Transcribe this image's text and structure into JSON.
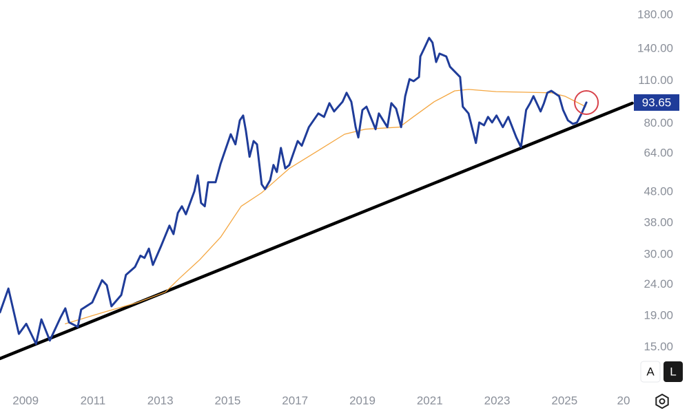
{
  "chart_data": {
    "type": "line",
    "log_scale": true,
    "xlim": [
      2008.24,
      2027.06
    ],
    "ylim": [
      11.0,
      201.6
    ],
    "xticks": [
      2009,
      2011,
      2013,
      2015,
      2017,
      2019,
      2021,
      2023,
      2025,
      {
        "value": 2027,
        "label": "20"
      }
    ],
    "yticks": [
      {
        "value": 15,
        "label": "15.00"
      },
      {
        "value": 19,
        "label": "19.00"
      },
      {
        "value": 24,
        "label": "24.00"
      },
      {
        "value": 30,
        "label": "30.00"
      },
      {
        "value": 38,
        "label": "38.00"
      },
      {
        "value": 48,
        "label": "48.00"
      },
      {
        "value": 64,
        "label": "64.00"
      },
      {
        "value": 80,
        "label": "80.00"
      },
      {
        "value": 110,
        "label": "110.00"
      },
      {
        "value": 140,
        "label": "140.00"
      },
      {
        "value": 180,
        "label": "180.00"
      }
    ],
    "last_price": 93.65,
    "series": [
      {
        "color": "#1f3c99",
        "width": 3,
        "x": [
          2008.24,
          2008.49,
          2008.8,
          2009.02,
          2009.31,
          2009.47,
          2009.72,
          2010.04,
          2010.18,
          2010.29,
          2010.55,
          2010.65,
          2010.98,
          2011.27,
          2011.41,
          2011.55,
          2011.84,
          2011.98,
          2012.25,
          2012.41,
          2012.53,
          2012.66,
          2012.78,
          2013.02,
          2013.27,
          2013.39,
          2013.52,
          2013.64,
          2013.76,
          2014.01,
          2014.11,
          2014.21,
          2014.32,
          2014.42,
          2014.64,
          2014.79,
          2015.09,
          2015.23,
          2015.36,
          2015.46,
          2015.54,
          2015.65,
          2015.77,
          2015.87,
          2016.01,
          2016.11,
          2016.26,
          2016.36,
          2016.46,
          2016.58,
          2016.71,
          2016.83,
          2017.08,
          2017.2,
          2017.41,
          2017.69,
          2017.86,
          2018.02,
          2018.16,
          2018.41,
          2018.53,
          2018.67,
          2018.8,
          2018.88,
          2019.0,
          2019.12,
          2019.39,
          2019.49,
          2019.74,
          2019.86,
          2020.0,
          2020.15,
          2020.27,
          2020.4,
          2020.52,
          2020.68,
          2020.72,
          2020.84,
          2020.98,
          2021.08,
          2021.19,
          2021.29,
          2021.49,
          2021.6,
          2021.9,
          2021.98,
          2022.15,
          2022.37,
          2022.47,
          2022.61,
          2022.73,
          2022.85,
          2022.98,
          2023.17,
          2023.33,
          2023.57,
          2023.71,
          2023.86,
          2023.98,
          2024.08,
          2024.29,
          2024.39,
          2024.49,
          2024.61,
          2024.84,
          2024.96,
          2025.1,
          2025.25,
          2025.37,
          2025.51,
          2025.65
        ],
        "values": [
          19.5,
          23.3,
          16.6,
          17.9,
          15.4,
          18.5,
          15.8,
          18.8,
          20.1,
          18.1,
          17.5,
          19.9,
          21.0,
          24.8,
          23.9,
          20.4,
          22.2,
          25.8,
          27.4,
          29.8,
          29.3,
          31.4,
          27.8,
          32.0,
          37.3,
          35.0,
          41.0,
          43.1,
          40.6,
          48.2,
          54.3,
          44.2,
          43.1,
          51.6,
          51.6,
          59.3,
          73.9,
          68.5,
          82.0,
          85.0,
          75.8,
          62.4,
          70.2,
          68.5,
          50.8,
          49.0,
          52.4,
          58.7,
          55.7,
          66.7,
          57.2,
          58.7,
          70.2,
          67.8,
          77.9,
          86.3,
          84.1,
          93.2,
          87.6,
          94.2,
          100.7,
          94.2,
          77.9,
          72.1,
          88.5,
          90.8,
          76.7,
          86.3,
          77.9,
          93.2,
          89.5,
          77.9,
          98.2,
          111.6,
          109.9,
          113.3,
          132.2,
          140.7,
          151.9,
          146.6,
          126.8,
          135.0,
          132.2,
          122.4,
          113.3,
          90.8,
          86.3,
          69.2,
          80.7,
          79.0,
          84.1,
          80.7,
          85.0,
          77.9,
          84.1,
          72.1,
          67.1,
          88.5,
          93.2,
          98.2,
          87.6,
          93.2,
          100.7,
          102.2,
          98.2,
          88.5,
          82.0,
          79.8,
          80.7,
          86.3,
          93.65
        ]
      },
      {
        "color": "#f4a640",
        "width": 1.3,
        "x": [
          2010.18,
          2011.31,
          2012.33,
          2013.15,
          2013.56,
          2014.17,
          2014.79,
          2015.4,
          2016.01,
          2016.83,
          2017.65,
          2018.47,
          2019.08,
          2020.1,
          2020.51,
          2021.13,
          2021.74,
          2022.15,
          2022.97,
          2024.61,
          2025.01,
          2025.63
        ],
        "values": [
          17.9,
          19.5,
          21.0,
          22.7,
          25.1,
          28.9,
          34.2,
          43.1,
          47.7,
          57.2,
          65.0,
          73.9,
          76.7,
          77.9,
          84.1,
          94.2,
          102.2,
          103.3,
          101.6,
          100.7,
          98.2,
          90.8
        ]
      },
      {
        "color": "#000000",
        "width": 4.5,
        "x": [
          2008.24,
          2027.01
        ],
        "values": [
          13.8,
          93.2
        ]
      }
    ]
  },
  "controls": [
    "A",
    "L"
  ]
}
